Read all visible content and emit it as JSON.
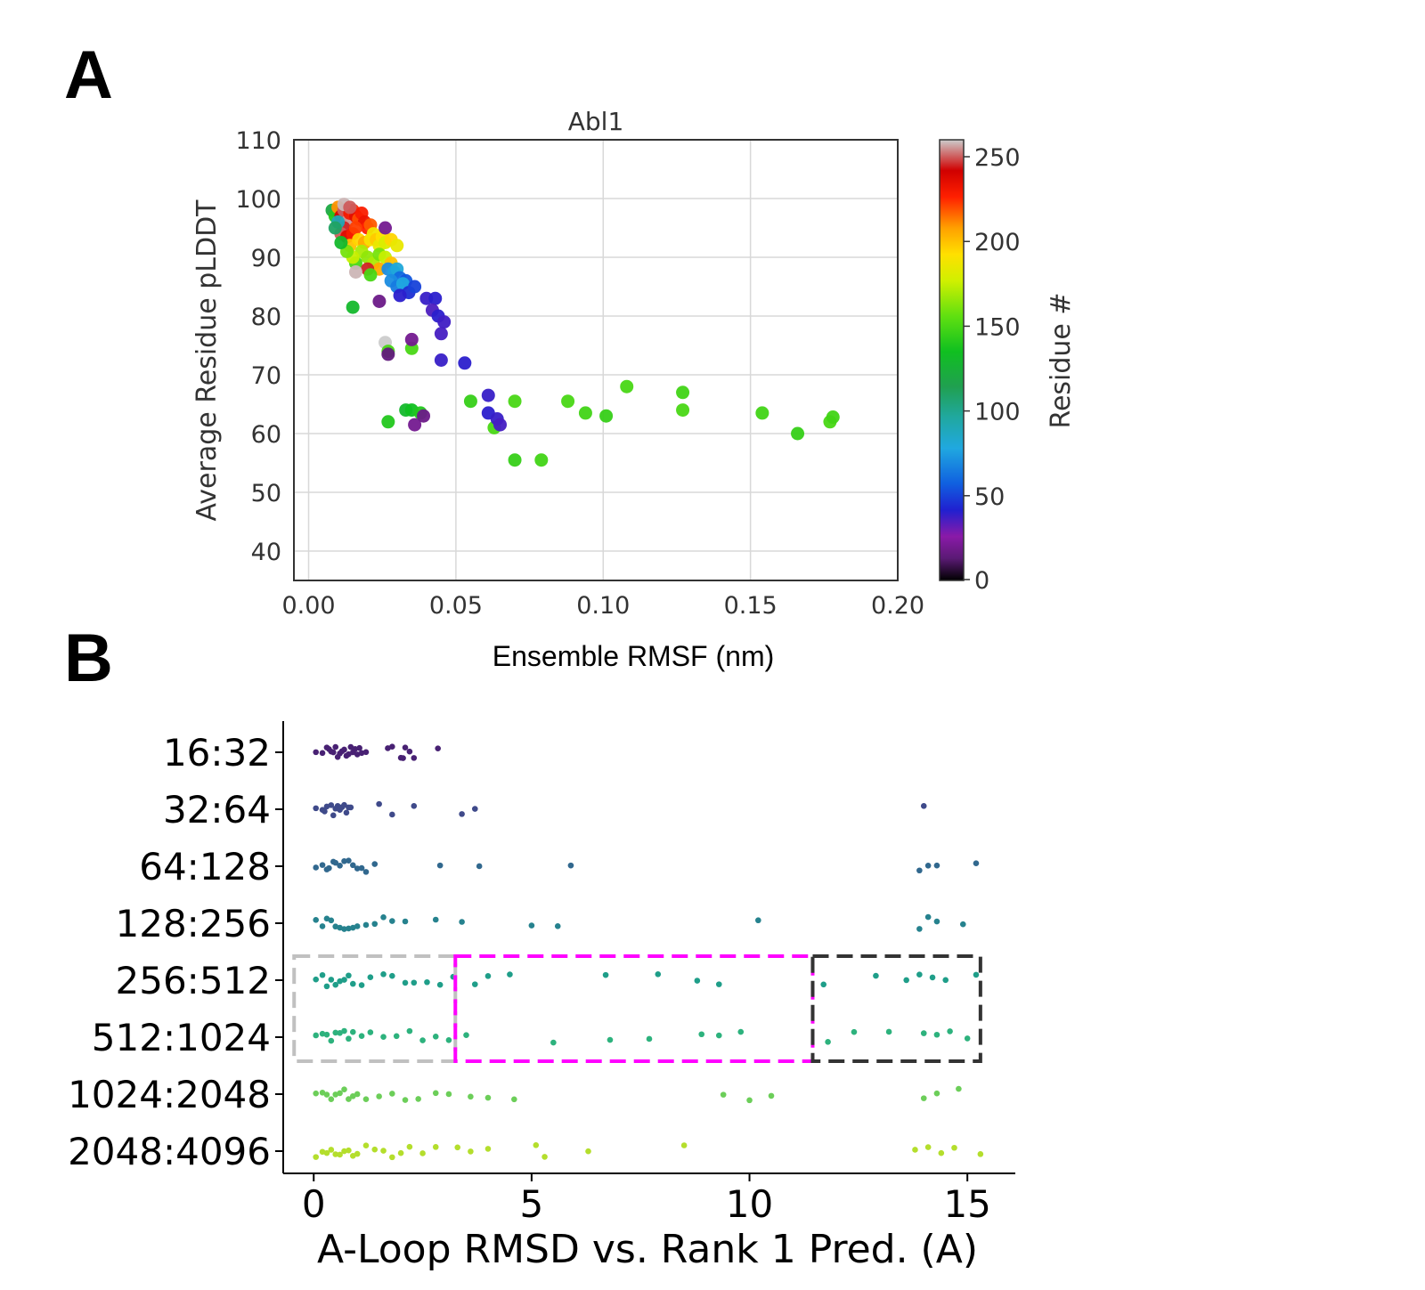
{
  "panels": {
    "a_label": "A",
    "b_label": "B"
  },
  "chart_data": [
    {
      "type": "scatter",
      "title": "Abl1",
      "xlabel": "Ensemble RMSF (nm)",
      "ylabel": "Average Residue pLDDT",
      "xlim": [
        -0.005,
        0.2
      ],
      "ylim": [
        35,
        110
      ],
      "xticks": [
        0.0,
        0.05,
        0.1,
        0.15,
        0.2
      ],
      "xtick_labels": [
        "0.00",
        "0.05",
        "0.10",
        "0.15",
        "0.20"
      ],
      "yticks": [
        40,
        50,
        60,
        70,
        80,
        90,
        100,
        110
      ],
      "ytick_labels": [
        "40",
        "50",
        "60",
        "70",
        "80",
        "90",
        "100",
        "110"
      ],
      "grid": true,
      "colorbar": {
        "label": "Residue #",
        "colormap": "nipy_spectral",
        "range": [
          0,
          260
        ],
        "ticks": [
          0,
          50,
          100,
          150,
          200,
          250
        ],
        "tick_labels": [
          "0",
          "50",
          "100",
          "150",
          "200",
          "250"
        ]
      },
      "points": [
        {
          "x": 0.008,
          "y": 98,
          "c": 120
        },
        {
          "x": 0.009,
          "y": 97,
          "c": 140
        },
        {
          "x": 0.01,
          "y": 98.5,
          "c": 210
        },
        {
          "x": 0.011,
          "y": 97,
          "c": 240
        },
        {
          "x": 0.012,
          "y": 98,
          "c": 250
        },
        {
          "x": 0.013,
          "y": 96,
          "c": 255
        },
        {
          "x": 0.014,
          "y": 97.5,
          "c": 230
        },
        {
          "x": 0.015,
          "y": 98,
          "c": 225
        },
        {
          "x": 0.016,
          "y": 97,
          "c": 235
        },
        {
          "x": 0.017,
          "y": 96.5,
          "c": 220
        },
        {
          "x": 0.018,
          "y": 97.5,
          "c": 228
        },
        {
          "x": 0.019,
          "y": 96,
          "c": 232
        },
        {
          "x": 0.02,
          "y": 95,
          "c": 226
        },
        {
          "x": 0.021,
          "y": 95.5,
          "c": 218
        },
        {
          "x": 0.012,
          "y": 95,
          "c": 245
        },
        {
          "x": 0.011,
          "y": 94,
          "c": 250
        },
        {
          "x": 0.013,
          "y": 93.5,
          "c": 237
        },
        {
          "x": 0.015,
          "y": 94,
          "c": 229
        },
        {
          "x": 0.016,
          "y": 95,
          "c": 222
        },
        {
          "x": 0.014,
          "y": 92,
          "c": 200
        },
        {
          "x": 0.017,
          "y": 93,
          "c": 195
        },
        {
          "x": 0.019,
          "y": 92.5,
          "c": 205
        },
        {
          "x": 0.021,
          "y": 93,
          "c": 190
        },
        {
          "x": 0.022,
          "y": 94,
          "c": 188
        },
        {
          "x": 0.023,
          "y": 93,
          "c": 198
        },
        {
          "x": 0.024,
          "y": 92,
          "c": 185
        },
        {
          "x": 0.025,
          "y": 93.5,
          "c": 192
        },
        {
          "x": 0.026,
          "y": 92.5,
          "c": 180
        },
        {
          "x": 0.028,
          "y": 93,
          "c": 195
        },
        {
          "x": 0.03,
          "y": 92,
          "c": 185
        },
        {
          "x": 0.018,
          "y": 91,
          "c": 170
        },
        {
          "x": 0.02,
          "y": 90,
          "c": 165
        },
        {
          "x": 0.022,
          "y": 89,
          "c": 170
        },
        {
          "x": 0.024,
          "y": 90.5,
          "c": 160
        },
        {
          "x": 0.026,
          "y": 90,
          "c": 175
        },
        {
          "x": 0.016,
          "y": 89,
          "c": 150
        },
        {
          "x": 0.015,
          "y": 90,
          "c": 175
        },
        {
          "x": 0.013,
          "y": 91,
          "c": 160
        },
        {
          "x": 0.011,
          "y": 92.5,
          "c": 130
        },
        {
          "x": 0.01,
          "y": 96,
          "c": 90
        },
        {
          "x": 0.009,
          "y": 95,
          "c": 110
        },
        {
          "x": 0.012,
          "y": 99,
          "c": 258
        },
        {
          "x": 0.014,
          "y": 98.5,
          "c": 250
        },
        {
          "x": 0.026,
          "y": 95,
          "c": 20
        },
        {
          "x": 0.028,
          "y": 89,
          "c": 200
        },
        {
          "x": 0.024,
          "y": 88,
          "c": 205
        },
        {
          "x": 0.02,
          "y": 88,
          "c": 245
        },
        {
          "x": 0.016,
          "y": 87.5,
          "c": 258
        },
        {
          "x": 0.021,
          "y": 87,
          "c": 150
        },
        {
          "x": 0.027,
          "y": 88,
          "c": 70
        },
        {
          "x": 0.029,
          "y": 87.5,
          "c": 75
        },
        {
          "x": 0.03,
          "y": 88,
          "c": 80
        },
        {
          "x": 0.031,
          "y": 86.5,
          "c": 60
        },
        {
          "x": 0.033,
          "y": 86,
          "c": 55
        },
        {
          "x": 0.028,
          "y": 86,
          "c": 70
        },
        {
          "x": 0.03,
          "y": 85,
          "c": 65
        },
        {
          "x": 0.032,
          "y": 85.5,
          "c": 78
        },
        {
          "x": 0.034,
          "y": 84,
          "c": 45
        },
        {
          "x": 0.036,
          "y": 85,
          "c": 50
        },
        {
          "x": 0.031,
          "y": 83.5,
          "c": 40
        },
        {
          "x": 0.04,
          "y": 83,
          "c": 38
        },
        {
          "x": 0.043,
          "y": 83,
          "c": 40
        },
        {
          "x": 0.042,
          "y": 81,
          "c": 35
        },
        {
          "x": 0.044,
          "y": 80,
          "c": 40
        },
        {
          "x": 0.046,
          "y": 79,
          "c": 37
        },
        {
          "x": 0.045,
          "y": 77,
          "c": 36
        },
        {
          "x": 0.045,
          "y": 72.5,
          "c": 38
        },
        {
          "x": 0.053,
          "y": 72,
          "c": 40
        },
        {
          "x": 0.024,
          "y": 82.5,
          "c": 18
        },
        {
          "x": 0.015,
          "y": 81.5,
          "c": 130
        },
        {
          "x": 0.026,
          "y": 75.5,
          "c": 260
        },
        {
          "x": 0.027,
          "y": 74,
          "c": 150
        },
        {
          "x": 0.027,
          "y": 73.5,
          "c": 15
        },
        {
          "x": 0.035,
          "y": 74.5,
          "c": 150
        },
        {
          "x": 0.035,
          "y": 76,
          "c": 20
        },
        {
          "x": 0.027,
          "y": 62,
          "c": 140
        },
        {
          "x": 0.033,
          "y": 64,
          "c": 130
        },
        {
          "x": 0.035,
          "y": 64,
          "c": 135
        },
        {
          "x": 0.036,
          "y": 61.5,
          "c": 20
        },
        {
          "x": 0.038,
          "y": 63.5,
          "c": 140
        },
        {
          "x": 0.039,
          "y": 63,
          "c": 18
        },
        {
          "x": 0.055,
          "y": 65.5,
          "c": 145
        },
        {
          "x": 0.061,
          "y": 66.5,
          "c": 38
        },
        {
          "x": 0.061,
          "y": 63.5,
          "c": 40
        },
        {
          "x": 0.063,
          "y": 61,
          "c": 150
        },
        {
          "x": 0.064,
          "y": 62.5,
          "c": 38
        },
        {
          "x": 0.065,
          "y": 61.5,
          "c": 36
        },
        {
          "x": 0.07,
          "y": 65.5,
          "c": 150
        },
        {
          "x": 0.07,
          "y": 55.5,
          "c": 145
        },
        {
          "x": 0.079,
          "y": 55.5,
          "c": 148
        },
        {
          "x": 0.088,
          "y": 65.5,
          "c": 150
        },
        {
          "x": 0.094,
          "y": 63.5,
          "c": 148
        },
        {
          "x": 0.101,
          "y": 63,
          "c": 145
        },
        {
          "x": 0.108,
          "y": 68,
          "c": 150
        },
        {
          "x": 0.127,
          "y": 67,
          "c": 148
        },
        {
          "x": 0.127,
          "y": 64,
          "c": 150
        },
        {
          "x": 0.154,
          "y": 63.5,
          "c": 148
        },
        {
          "x": 0.166,
          "y": 60,
          "c": 145
        },
        {
          "x": 0.177,
          "y": 62,
          "c": 150
        },
        {
          "x": 0.178,
          "y": 62.8,
          "c": 148
        }
      ]
    },
    {
      "type": "strip",
      "xlabel": "A-Loop RMSD vs. Rank 1 Pred. (A)",
      "ylabel": "",
      "xlim": [
        -0.7,
        16.1
      ],
      "xticks": [
        0,
        5,
        10,
        15
      ],
      "xtick_labels": [
        "0",
        "5",
        "10",
        "15"
      ],
      "categories": [
        "16:32",
        "32:64",
        "64:128",
        "128:256",
        "256:512",
        "512:1024",
        "1024:2048",
        "2048:4096"
      ],
      "category_colors": [
        "#482173",
        "#3f4a8a",
        "#31688e",
        "#26828e",
        "#1f9e89",
        "#2db27d",
        "#6cce59",
        "#b4de2c"
      ],
      "series": [
        {
          "name": "16:32",
          "values": [
            0.05,
            0.2,
            0.3,
            0.35,
            0.4,
            0.45,
            0.5,
            0.55,
            0.6,
            0.65,
            0.7,
            0.75,
            0.8,
            0.85,
            0.9,
            0.95,
            1.0,
            1.05,
            1.1,
            1.2,
            1.7,
            1.8,
            2.0,
            2.05,
            2.1,
            2.2,
            2.3,
            2.85
          ]
        },
        {
          "name": "32:64",
          "values": [
            0.05,
            0.2,
            0.25,
            0.3,
            0.4,
            0.45,
            0.5,
            0.55,
            0.6,
            0.65,
            0.7,
            0.75,
            0.8,
            0.85,
            1.5,
            1.8,
            2.3,
            3.4,
            3.7,
            14.0
          ]
        },
        {
          "name": "64:128",
          "values": [
            0.05,
            0.2,
            0.3,
            0.35,
            0.45,
            0.5,
            0.6,
            0.7,
            0.8,
            0.9,
            1.0,
            1.1,
            1.2,
            1.4,
            2.9,
            3.8,
            5.9,
            13.9,
            14.1,
            14.3,
            15.2
          ]
        },
        {
          "name": "128:256",
          "values": [
            0.05,
            0.2,
            0.3,
            0.4,
            0.5,
            0.6,
            0.7,
            0.8,
            0.9,
            1.0,
            1.2,
            1.4,
            1.6,
            1.8,
            2.1,
            2.8,
            3.4,
            5.0,
            5.6,
            10.2,
            13.9,
            14.1,
            14.3,
            14.9
          ]
        },
        {
          "name": "256:512",
          "values": [
            0.05,
            0.2,
            0.3,
            0.4,
            0.5,
            0.6,
            0.7,
            0.8,
            0.9,
            1.1,
            1.3,
            1.6,
            1.8,
            2.1,
            2.3,
            2.6,
            2.9,
            3.2,
            3.7,
            4.0,
            4.5,
            6.7,
            7.9,
            8.8,
            9.3,
            11.7,
            12.9,
            13.6,
            13.9,
            14.2,
            14.5,
            15.2
          ]
        },
        {
          "name": "512:1024",
          "values": [
            0.05,
            0.2,
            0.3,
            0.4,
            0.5,
            0.6,
            0.7,
            0.8,
            0.9,
            1.1,
            1.3,
            1.6,
            1.9,
            2.2,
            2.5,
            2.8,
            3.1,
            3.5,
            5.5,
            6.8,
            7.7,
            8.9,
            9.3,
            9.8,
            11.8,
            12.4,
            13.2,
            14.0,
            14.3,
            14.6,
            15.0
          ]
        },
        {
          "name": "1024:2048",
          "values": [
            0.05,
            0.2,
            0.3,
            0.4,
            0.5,
            0.6,
            0.7,
            0.8,
            0.9,
            1.0,
            1.2,
            1.5,
            1.8,
            2.1,
            2.4,
            2.8,
            3.1,
            3.6,
            4.0,
            4.6,
            9.4,
            10.0,
            10.5,
            14.0,
            14.3,
            14.8
          ]
        },
        {
          "name": "2048:4096",
          "values": [
            0.05,
            0.2,
            0.3,
            0.4,
            0.5,
            0.6,
            0.7,
            0.8,
            0.9,
            1.0,
            1.2,
            1.4,
            1.6,
            1.8,
            2.0,
            2.2,
            2.5,
            2.8,
            3.3,
            3.6,
            4.0,
            5.1,
            5.3,
            6.3,
            8.5,
            13.8,
            14.1,
            14.4,
            14.7,
            15.3
          ]
        }
      ],
      "annotations": [
        {
          "name": "gray-dashed-box",
          "color": "#c0c0c0",
          "x_range": [
            -0.45,
            3.25
          ],
          "categories": [
            "256:512",
            "512:1024"
          ]
        },
        {
          "name": "magenta-dashed-box",
          "color": "#ff00ff",
          "x_range": [
            3.25,
            11.45
          ],
          "categories": [
            "256:512",
            "512:1024"
          ]
        },
        {
          "name": "black-dashed-box",
          "color": "#333333",
          "x_range": [
            11.45,
            15.3
          ],
          "categories": [
            "256:512",
            "512:1024"
          ]
        }
      ]
    }
  ]
}
